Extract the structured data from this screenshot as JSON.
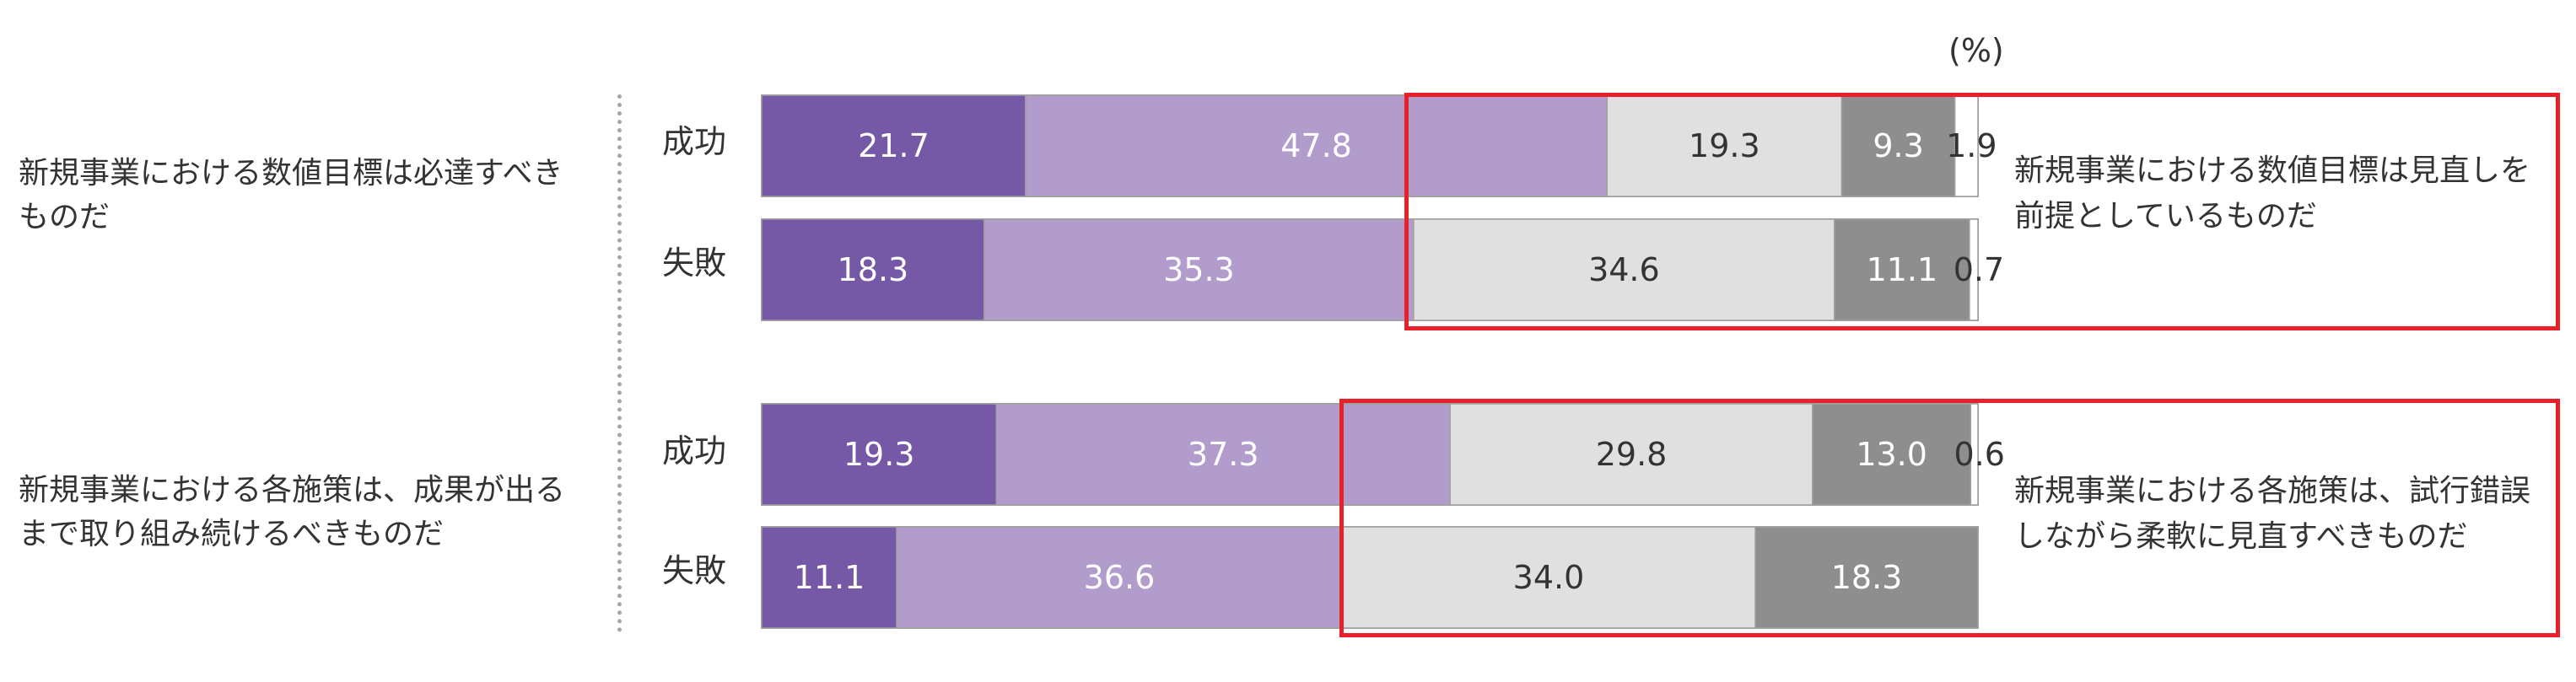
{
  "unit_label": "(%)",
  "colors": {
    "seg1": "#7558a6",
    "seg2": "#b19ccb",
    "seg3": "#e0e0e0",
    "seg4": "#8e8e8e",
    "seg5": "#ffffff",
    "highlight": "#e8202a"
  },
  "chart_data": {
    "type": "bar",
    "orientation": "horizontal",
    "stacked": true,
    "xlim": [
      0,
      100
    ],
    "unit": "(%)",
    "groups": [
      {
        "left_statement": "新規事業における数値目標は必達すべきものだ",
        "right_statement": "新規事業における数値目標は見直しを前提としているものだ",
        "rows": [
          {
            "label": "成功",
            "values": [
              21.7,
              47.8,
              19.3,
              9.3,
              1.9
            ],
            "value_labels": [
              "21.7",
              "47.8",
              "19.3",
              "9.3",
              "1.9"
            ]
          },
          {
            "label": "失敗",
            "values": [
              18.3,
              35.3,
              34.6,
              11.1,
              0.7
            ],
            "value_labels": [
              "18.3",
              "35.3",
              "34.6",
              "11.1",
              "0.7"
            ]
          }
        ]
      },
      {
        "left_statement": "新規事業における各施策は、成果が出るまで取り組み続けるべきものだ",
        "right_statement": "新規事業における各施策は、試行錯誤しながら柔軟に見直すべきものだ",
        "rows": [
          {
            "label": "成功",
            "values": [
              19.3,
              37.3,
              29.8,
              13.0,
              0.6
            ],
            "value_labels": [
              "19.3",
              "37.3",
              "29.8",
              "13.0",
              "0.6"
            ]
          },
          {
            "label": "失敗",
            "values": [
              11.1,
              36.6,
              34.0,
              18.3,
              0.0
            ],
            "value_labels": [
              "11.1",
              "36.6",
              "34.0",
              "18.3",
              ""
            ]
          }
        ]
      }
    ]
  }
}
